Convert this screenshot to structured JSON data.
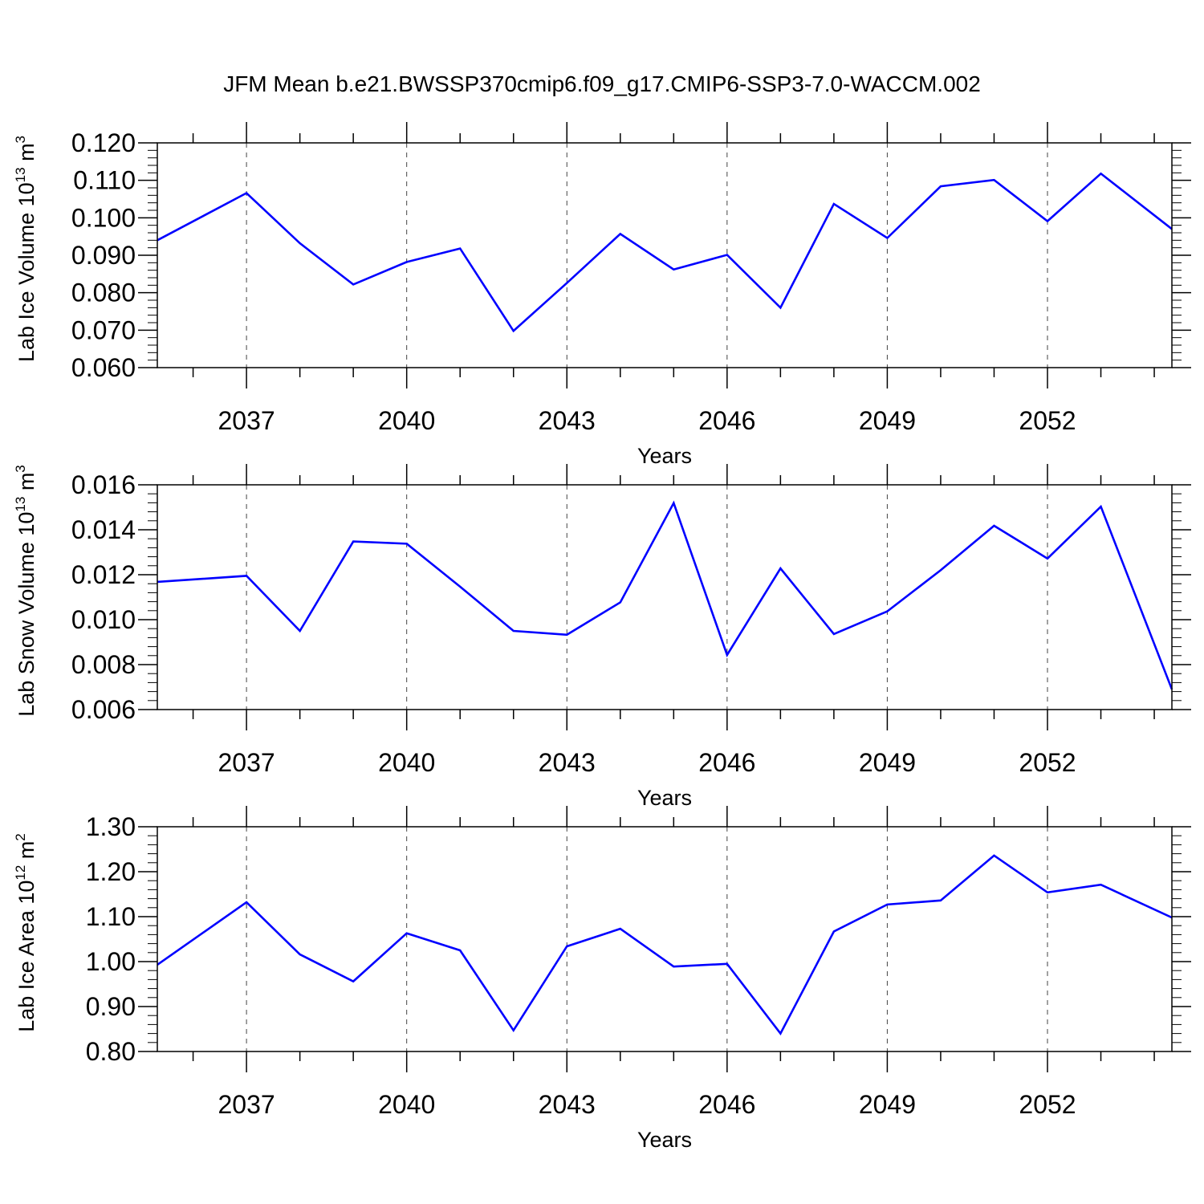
{
  "title": "JFM Mean b.e21.BWSSP370cmip6.f09_g17.CMIP6-SSP3-7.0-WACCM.002",
  "line_color": "#0000ff",
  "chart_data": [
    {
      "type": "line",
      "ylabel": "Lab Ice Volume 10",
      "ylabel_exp": "13",
      "ylabel_unit": "m",
      "ylabel_unit_exp": "3",
      "xlabel": "Years",
      "xlim": [
        2035.33,
        2054.33
      ],
      "ylim": [
        0.06,
        0.12
      ],
      "yticks": [
        0.06,
        0.07,
        0.08,
        0.09,
        0.1,
        0.11,
        0.12
      ],
      "yticklabels": [
        "0.060",
        "0.070",
        "0.080",
        "0.090",
        "0.100",
        "0.110",
        "0.120"
      ],
      "xticks": [
        2037,
        2040,
        2043,
        2046,
        2049,
        2052
      ],
      "xticklabels": [
        "2037",
        "2040",
        "2043",
        "2046",
        "2049",
        "2052"
      ],
      "grid": "vertical dashed at major x ticks",
      "x": [
        2035.33,
        2037,
        2038,
        2039,
        2040,
        2041,
        2042,
        2043,
        2044,
        2045,
        2046,
        2047,
        2048,
        2049,
        2050,
        2051,
        2052,
        2053,
        2054.33
      ],
      "series": [
        {
          "values": [
            0.094,
            0.1066,
            0.0932,
            0.0822,
            0.0882,
            0.0918,
            0.0698,
            0.0826,
            0.0957,
            0.0862,
            0.0901,
            0.076,
            0.1037,
            0.0946,
            0.1084,
            0.1101,
            0.0991,
            0.1118,
            0.097
          ]
        }
      ]
    },
    {
      "type": "line",
      "ylabel": "Lab Snow Volume 10",
      "ylabel_exp": "13",
      "ylabel_unit": "m",
      "ylabel_unit_exp": "3",
      "xlabel": "Years",
      "xlim": [
        2035.33,
        2054.33
      ],
      "ylim": [
        0.006,
        0.016
      ],
      "yticks": [
        0.006,
        0.008,
        0.01,
        0.012,
        0.014,
        0.016
      ],
      "yticklabels": [
        "0.006",
        "0.008",
        "0.010",
        "0.012",
        "0.014",
        "0.016"
      ],
      "xticks": [
        2037,
        2040,
        2043,
        2046,
        2049,
        2052
      ],
      "xticklabels": [
        "2037",
        "2040",
        "2043",
        "2046",
        "2049",
        "2052"
      ],
      "grid": "vertical dashed at major x ticks",
      "x": [
        2035.33,
        2037,
        2038,
        2039,
        2040,
        2041,
        2042,
        2043,
        2044,
        2045,
        2046,
        2047,
        2048,
        2049,
        2050,
        2051,
        2052,
        2053,
        2054.33
      ],
      "series": [
        {
          "values": [
            0.01168,
            0.01195,
            0.0095,
            0.01348,
            0.01338,
            0.01147,
            0.0095,
            0.00933,
            0.01077,
            0.01519,
            0.00843,
            0.01228,
            0.00936,
            0.01037,
            0.0122,
            0.01418,
            0.01272,
            0.01503,
            0.0069
          ]
        }
      ]
    },
    {
      "type": "line",
      "ylabel": "Lab Ice Area 10",
      "ylabel_exp": "12",
      "ylabel_unit": "m",
      "ylabel_unit_exp": "2",
      "xlabel": "Years",
      "xlim": [
        2035.33,
        2054.33
      ],
      "ylim": [
        0.8,
        1.3
      ],
      "yticks": [
        0.8,
        0.9,
        1.0,
        1.1,
        1.2,
        1.3
      ],
      "yticklabels": [
        "0.80",
        "0.90",
        "1.00",
        "1.10",
        "1.20",
        "1.30"
      ],
      "xticks": [
        2037,
        2040,
        2043,
        2046,
        2049,
        2052
      ],
      "xticklabels": [
        "2037",
        "2040",
        "2043",
        "2046",
        "2049",
        "2052"
      ],
      "grid": "vertical dashed at major x ticks",
      "x": [
        2035.33,
        2037,
        2038,
        2039,
        2040,
        2041,
        2042,
        2043,
        2044,
        2045,
        2046,
        2047,
        2048,
        2049,
        2050,
        2051,
        2052,
        2053,
        2054.33
      ],
      "series": [
        {
          "values": [
            0.993,
            1.132,
            1.016,
            0.956,
            1.063,
            1.025,
            0.847,
            1.034,
            1.073,
            0.989,
            0.995,
            0.84,
            1.067,
            1.127,
            1.136,
            1.236,
            1.154,
            1.171,
            1.098
          ]
        }
      ]
    }
  ]
}
